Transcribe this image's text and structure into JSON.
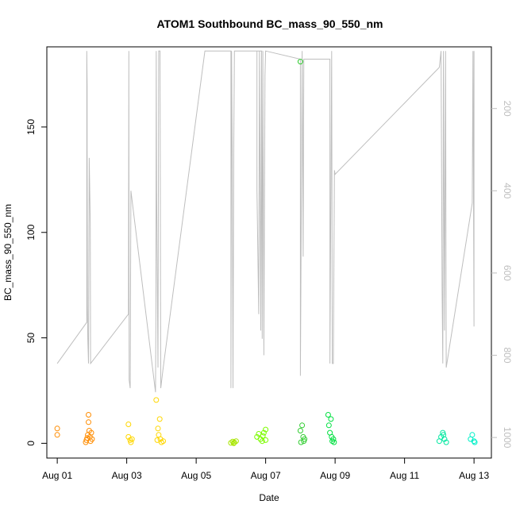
{
  "chart_data": {
    "type": "scatter",
    "title": "ATOM1 Southbound BC_mass_90_550_nm",
    "xlabel": "Date",
    "ylabel": "BC_mass_90_550_nm",
    "x_tick_labels": [
      "Aug 01",
      "Aug 03",
      "Aug 05",
      "Aug 07",
      "Aug 09",
      "Aug 11",
      "Aug 13"
    ],
    "x_tick_days": [
      1,
      3,
      5,
      7,
      9,
      11,
      13
    ],
    "xlim_days": [
      0.7,
      13.5
    ],
    "y_ticks": [
      0,
      50,
      100,
      150
    ],
    "ylim": [
      -7,
      188
    ],
    "right_axis": {
      "ticks": [
        200,
        400,
        600,
        800,
        1000
      ],
      "reversed": true,
      "lim": [
        1050,
        50
      ],
      "color": "#bebebe"
    },
    "grid": false,
    "legend": "none",
    "scatter_marker": "open-circle",
    "altitude_color": "#bebebe",
    "series": [
      {
        "color": "#ff8c00",
        "points": [
          [
            1.0,
            7.0
          ],
          [
            1.0,
            4.0
          ],
          [
            1.82,
            0.5
          ],
          [
            1.84,
            1.5
          ],
          [
            1.86,
            2.5
          ],
          [
            1.88,
            4.0
          ],
          [
            1.9,
            13.5
          ],
          [
            1.9,
            10.0
          ],
          [
            1.92,
            6.0
          ],
          [
            1.94,
            3.0
          ],
          [
            1.96,
            1.0
          ],
          [
            1.98,
            5.0
          ],
          [
            2.0,
            2.0
          ]
        ]
      },
      {
        "color": "#ffd700",
        "points": [
          [
            3.05,
            9.0
          ],
          [
            3.05,
            3.0
          ],
          [
            3.1,
            1.5
          ],
          [
            3.12,
            0.5
          ],
          [
            3.15,
            2.0
          ],
          [
            3.85,
            20.5
          ],
          [
            3.9,
            7.0
          ],
          [
            3.92,
            4.0
          ],
          [
            3.95,
            11.5
          ],
          [
            3.97,
            2.0
          ],
          [
            4.0,
            0.5
          ],
          [
            4.05,
            1.0
          ],
          [
            3.88,
            1.5
          ]
        ]
      },
      {
        "color": "#a8e600",
        "points": [
          [
            6.0,
            0.2
          ],
          [
            6.05,
            0.8
          ],
          [
            6.1,
            0.4
          ],
          [
            6.15,
            1.0
          ],
          [
            6.08,
            0.0
          ]
        ]
      },
      {
        "color": "#7cfc00",
        "points": [
          [
            6.75,
            3.0
          ],
          [
            6.8,
            4.5
          ],
          [
            6.85,
            2.0
          ],
          [
            6.9,
            1.0
          ],
          [
            6.95,
            5.0
          ],
          [
            7.0,
            6.5
          ],
          [
            7.0,
            1.5
          ],
          [
            6.92,
            3.5
          ]
        ]
      },
      {
        "color": "#32cd32",
        "points": [
          [
            8.0,
            181.0
          ],
          [
            8.0,
            6.0
          ],
          [
            8.05,
            8.5
          ],
          [
            8.08,
            3.0
          ],
          [
            8.1,
            1.0
          ],
          [
            8.12,
            2.0
          ],
          [
            8.02,
            0.5
          ]
        ]
      },
      {
        "color": "#00e040",
        "points": [
          [
            8.8,
            13.5
          ],
          [
            8.82,
            8.5
          ],
          [
            8.85,
            5.0
          ],
          [
            8.88,
            11.5
          ],
          [
            8.9,
            3.0
          ],
          [
            8.92,
            1.0
          ],
          [
            8.95,
            2.0
          ],
          [
            8.97,
            0.5
          ]
        ]
      },
      {
        "color": "#00e8a0",
        "points": [
          [
            12.0,
            1.0
          ],
          [
            12.05,
            3.0
          ],
          [
            12.1,
            5.0
          ],
          [
            12.15,
            2.0
          ],
          [
            12.2,
            0.5
          ],
          [
            12.12,
            4.0
          ]
        ]
      },
      {
        "color": "#00f0c8",
        "points": [
          [
            12.9,
            2.0
          ],
          [
            12.95,
            4.0
          ],
          [
            13.0,
            1.0
          ],
          [
            13.02,
            0.5
          ]
        ]
      }
    ],
    "altitude": {
      "unit": "right-axis",
      "points": [
        [
          1.0,
          820
        ],
        [
          1.85,
          720
        ],
        [
          1.85,
          60
        ],
        [
          1.86,
          150
        ],
        [
          1.86,
          300
        ],
        [
          1.87,
          680
        ],
        [
          1.88,
          760
        ],
        [
          1.9,
          820
        ],
        [
          1.92,
          320
        ],
        [
          1.95,
          480
        ],
        [
          1.96,
          820
        ],
        [
          3.05,
          700
        ],
        [
          3.06,
          60
        ],
        [
          3.07,
          860
        ],
        [
          3.1,
          880
        ],
        [
          3.12,
          400
        ],
        [
          3.83,
          890
        ],
        [
          3.84,
          700
        ],
        [
          3.85,
          60
        ],
        [
          3.86,
          400
        ],
        [
          3.9,
          830
        ],
        [
          3.92,
          60
        ],
        [
          3.96,
          60
        ],
        [
          3.98,
          880
        ],
        [
          4.05,
          830
        ],
        [
          5.25,
          60
        ],
        [
          6.0,
          60
        ],
        [
          6.0,
          880
        ],
        [
          6.02,
          60
        ],
        [
          6.04,
          320
        ],
        [
          6.06,
          880
        ],
        [
          6.08,
          310
        ],
        [
          6.1,
          60
        ],
        [
          6.9,
          60
        ],
        [
          6.75,
          60
        ],
        [
          6.75,
          400
        ],
        [
          6.8,
          700
        ],
        [
          6.82,
          60
        ],
        [
          6.86,
          740
        ],
        [
          6.88,
          60
        ],
        [
          6.9,
          760
        ],
        [
          6.92,
          60
        ],
        [
          6.95,
          800
        ],
        [
          6.98,
          120
        ],
        [
          7.0,
          60
        ],
        [
          8.0,
          80
        ],
        [
          8.0,
          850
        ],
        [
          8.05,
          60
        ],
        [
          8.08,
          560
        ],
        [
          8.1,
          80
        ],
        [
          8.85,
          80
        ],
        [
          8.85,
          820
        ],
        [
          8.9,
          60
        ],
        [
          8.92,
          820
        ],
        [
          8.95,
          820
        ],
        [
          8.98,
          350
        ],
        [
          9.0,
          360
        ],
        [
          12.0,
          100
        ],
        [
          12.05,
          60
        ],
        [
          12.08,
          640
        ],
        [
          12.1,
          820
        ],
        [
          12.12,
          60
        ],
        [
          12.15,
          740
        ],
        [
          12.18,
          60
        ],
        [
          12.2,
          830
        ],
        [
          12.95,
          430
        ],
        [
          12.97,
          60
        ],
        [
          13.0,
          730
        ],
        [
          13.0,
          60
        ]
      ]
    }
  }
}
